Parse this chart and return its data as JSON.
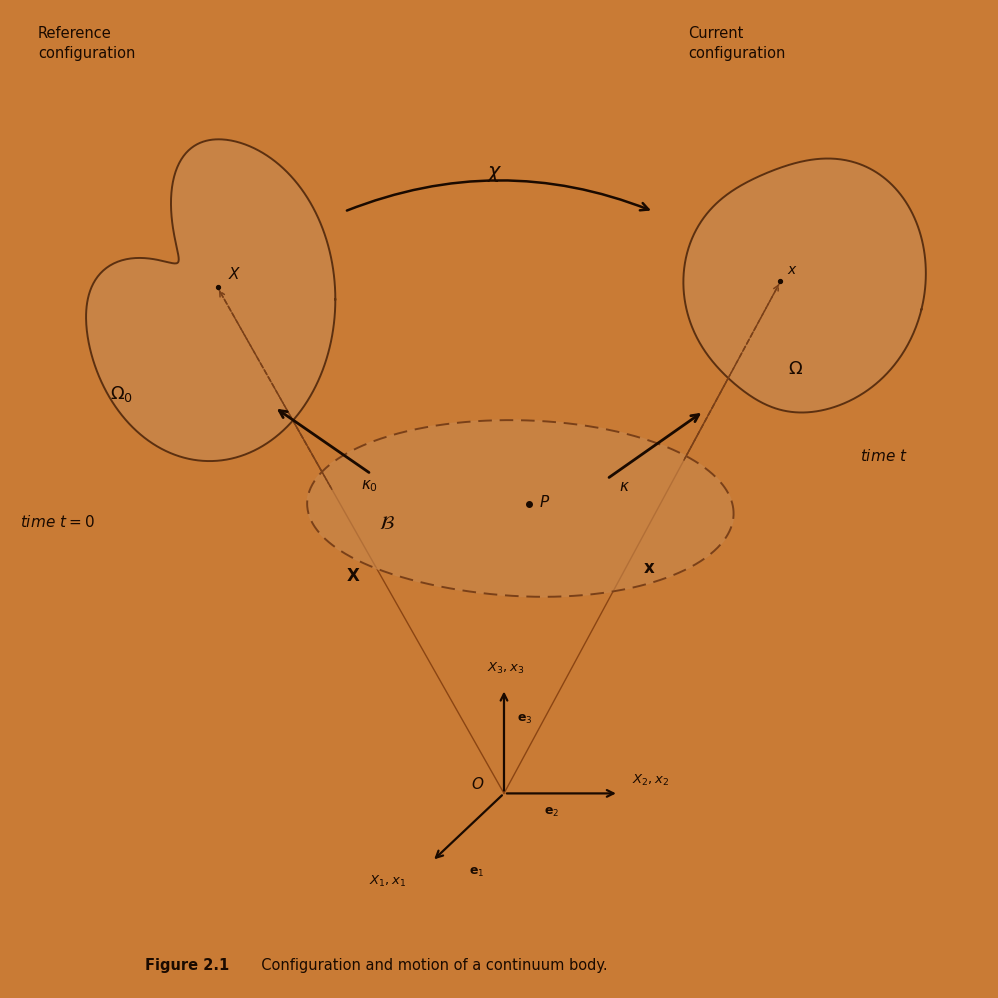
{
  "bg_color": "#C97B35",
  "body_fill": "#C8864A",
  "body_edge": "#5C3010",
  "dashed_color": "#7A4018",
  "arrow_color": "#1A0A00",
  "text_color": "#1A0A00",
  "fig_caption_bold": "Figure 2.1",
  "fig_caption_rest": "  Configuration and motion of a continuum body."
}
